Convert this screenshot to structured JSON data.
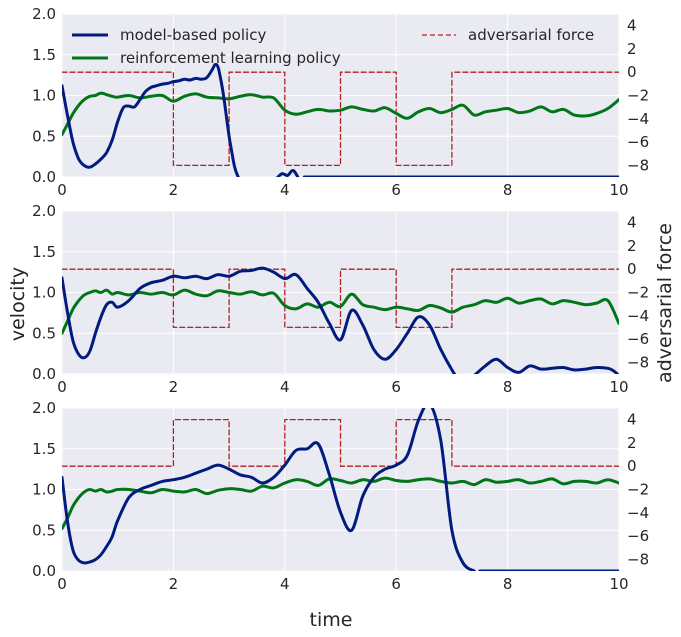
{
  "figure": {
    "xlabel": "time",
    "ylabel": "velocity",
    "y2label": "adversarial force",
    "legend": {
      "model": "model-based policy",
      "rl": "reinforcement learning policy",
      "force": "adversarial force"
    },
    "colors": {
      "background": "#eaeaf2",
      "grid": "#ffffff",
      "model": "#001c7f",
      "rl": "#017517",
      "force": "#b22222"
    }
  },
  "chart_data": [
    {
      "type": "line",
      "panel": 1,
      "xlim": [
        0,
        10
      ],
      "ylim": [
        0,
        2
      ],
      "y2lim": [
        -9,
        5
      ],
      "xticks": [
        "0",
        "2",
        "4",
        "6",
        "8",
        "10"
      ],
      "yticks": [
        "0.0",
        "0.5",
        "1.0",
        "1.5",
        "2.0"
      ],
      "y2ticks": [
        "−8",
        "−6",
        "−4",
        "−2",
        "0",
        "2",
        "4"
      ],
      "legend_position": "top",
      "grid": true,
      "series": [
        {
          "name": "model-based policy",
          "axis": "left",
          "x": [
            0,
            0.1,
            0.2,
            0.3,
            0.4,
            0.5,
            0.6,
            0.7,
            0.8,
            0.9,
            1.0,
            1.1,
            1.2,
            1.3,
            1.4,
            1.5,
            1.6,
            1.7,
            1.8,
            1.9,
            2.0,
            2.1,
            2.2,
            2.3,
            2.4,
            2.5,
            2.6,
            2.7,
            2.75,
            2.8,
            2.85,
            2.9,
            2.95,
            3.0,
            3.05,
            3.1,
            3.15,
            3.2,
            3.25,
            3.3,
            3.35
          ],
          "y": [
            1.12,
            0.75,
            0.42,
            0.22,
            0.14,
            0.12,
            0.16,
            0.22,
            0.3,
            0.45,
            0.68,
            0.85,
            0.87,
            0.86,
            0.95,
            1.05,
            1.1,
            1.12,
            1.14,
            1.15,
            1.17,
            1.18,
            1.2,
            1.19,
            1.21,
            1.2,
            1.22,
            1.32,
            1.38,
            1.35,
            1.2,
            1.0,
            0.75,
            0.5,
            0.3,
            0.12,
            0.02,
            -0.05,
            -0.1,
            -0.12,
            -0.13
          ]
        },
        {
          "name": "",
          "axis": "left",
          "x": [
            3.85,
            3.95,
            4.05,
            4.15,
            4.25
          ],
          "y": [
            -0.02,
            0.04,
            0.02,
            0.08,
            -0.02
          ]
        },
        {
          "name": "",
          "axis": "left",
          "x": [
            4.35,
            10
          ],
          "y": [
            0.0,
            0.0
          ]
        },
        {
          "name": "reinforcement learning policy",
          "axis": "left",
          "x": [
            0,
            0.1,
            0.2,
            0.3,
            0.4,
            0.5,
            0.6,
            0.7,
            0.8,
            0.9,
            1.0,
            1.2,
            1.4,
            1.6,
            1.8,
            2.0,
            2.2,
            2.4,
            2.6,
            2.8,
            3.0,
            3.2,
            3.4,
            3.6,
            3.8,
            4.0,
            4.2,
            4.4,
            4.6,
            4.8,
            5.0,
            5.2,
            5.4,
            5.6,
            5.8,
            6.0,
            6.2,
            6.4,
            6.6,
            6.8,
            7.0,
            7.2,
            7.4,
            7.6,
            7.8,
            8.0,
            8.2,
            8.4,
            8.6,
            8.8,
            9.0,
            9.2,
            9.4,
            9.6,
            9.8,
            10.0
          ],
          "y": [
            0.52,
            0.65,
            0.78,
            0.88,
            0.95,
            0.99,
            1.0,
            1.03,
            1.01,
            0.99,
            0.98,
            1.0,
            0.97,
            0.99,
            1.0,
            0.93,
            0.99,
            1.02,
            0.98,
            0.97,
            0.96,
            0.99,
            1.01,
            0.98,
            0.97,
            0.82,
            0.77,
            0.8,
            0.83,
            0.81,
            0.82,
            0.86,
            0.83,
            0.81,
            0.85,
            0.78,
            0.72,
            0.8,
            0.84,
            0.79,
            0.83,
            0.88,
            0.76,
            0.8,
            0.82,
            0.84,
            0.79,
            0.81,
            0.86,
            0.8,
            0.83,
            0.76,
            0.75,
            0.78,
            0.84,
            0.95
          ]
        },
        {
          "name": "adversarial force",
          "axis": "right",
          "style": "dashed",
          "x": [
            0,
            2,
            2,
            3,
            3,
            4,
            4,
            5,
            5,
            6,
            6,
            7,
            7,
            10
          ],
          "y": [
            0,
            0,
            -8,
            -8,
            0,
            0,
            -8,
            -8,
            0,
            0,
            -8,
            -8,
            0,
            0
          ]
        }
      ]
    },
    {
      "type": "line",
      "panel": 2,
      "xlim": [
        0,
        10
      ],
      "ylim": [
        0,
        2
      ],
      "y2lim": [
        -9,
        5
      ],
      "xticks": [
        "0",
        "2",
        "4",
        "6",
        "8",
        "10"
      ],
      "yticks": [
        "0.0",
        "0.5",
        "1.0",
        "1.5",
        "2.0"
      ],
      "y2ticks": [
        "−8",
        "−6",
        "−4",
        "−2",
        "0",
        "2",
        "4"
      ],
      "grid": true,
      "series": [
        {
          "name": "model-based policy",
          "axis": "left",
          "x": [
            0,
            0.1,
            0.2,
            0.3,
            0.4,
            0.5,
            0.6,
            0.7,
            0.8,
            0.9,
            1.0,
            1.2,
            1.4,
            1.6,
            1.8,
            2.0,
            2.2,
            2.4,
            2.6,
            2.8,
            3.0,
            3.2,
            3.4,
            3.6,
            3.8,
            4.0,
            4.2,
            4.4,
            4.6,
            4.8,
            5.0,
            5.2,
            5.4,
            5.6,
            5.8,
            6.0,
            6.2,
            6.4,
            6.6,
            6.8,
            7.0,
            7.1,
            7.2,
            7.3
          ],
          "y": [
            1.18,
            0.75,
            0.4,
            0.24,
            0.2,
            0.28,
            0.5,
            0.7,
            0.85,
            0.88,
            0.82,
            0.9,
            1.05,
            1.12,
            1.15,
            1.2,
            1.18,
            1.2,
            1.17,
            1.22,
            1.2,
            1.26,
            1.27,
            1.3,
            1.25,
            1.17,
            1.22,
            1.05,
            0.88,
            0.62,
            0.42,
            0.78,
            0.6,
            0.3,
            0.18,
            0.3,
            0.5,
            0.7,
            0.6,
            0.3,
            0.05,
            -0.05,
            -0.1,
            -0.13
          ]
        },
        {
          "name": "",
          "axis": "left",
          "x": [
            7.4,
            7.6,
            7.8,
            8.0,
            8.2,
            8.4,
            8.6,
            8.8,
            9.0,
            9.2,
            9.4,
            9.6,
            9.8,
            9.9,
            10.0
          ],
          "y": [
            -0.02,
            0.1,
            0.18,
            0.08,
            0.02,
            0.1,
            0.06,
            0.07,
            0.08,
            0.05,
            0.06,
            0.08,
            0.07,
            0.04,
            -0.02
          ]
        },
        {
          "name": "reinforcement learning policy",
          "axis": "left",
          "x": [
            0,
            0.1,
            0.2,
            0.3,
            0.4,
            0.5,
            0.6,
            0.7,
            0.8,
            0.9,
            1.0,
            1.2,
            1.4,
            1.6,
            1.8,
            2.0,
            2.2,
            2.4,
            2.6,
            2.8,
            3.0,
            3.2,
            3.4,
            3.6,
            3.8,
            4.0,
            4.2,
            4.4,
            4.6,
            4.8,
            5.0,
            5.2,
            5.4,
            5.6,
            5.8,
            6.0,
            6.2,
            6.4,
            6.6,
            6.8,
            7.0,
            7.2,
            7.4,
            7.6,
            7.8,
            8.0,
            8.2,
            8.4,
            8.6,
            8.8,
            9.0,
            9.2,
            9.4,
            9.6,
            9.8,
            10.0
          ],
          "y": [
            0.5,
            0.65,
            0.8,
            0.9,
            0.97,
            1.0,
            1.02,
            1.0,
            1.03,
            0.98,
            1.0,
            0.97,
            1.0,
            0.98,
            1.0,
            0.97,
            1.03,
            0.98,
            0.96,
            1.02,
            1.0,
            0.98,
            1.01,
            0.97,
            0.99,
            0.84,
            0.8,
            0.86,
            0.82,
            0.88,
            0.83,
            0.98,
            0.85,
            0.82,
            0.79,
            0.82,
            0.8,
            0.78,
            0.84,
            0.81,
            0.76,
            0.82,
            0.85,
            0.9,
            0.88,
            0.93,
            0.87,
            0.9,
            0.92,
            0.86,
            0.9,
            0.88,
            0.85,
            0.87,
            0.9,
            0.62
          ]
        },
        {
          "name": "adversarial force",
          "axis": "right",
          "style": "dashed",
          "x": [
            0,
            2,
            2,
            3,
            3,
            4,
            4,
            5,
            5,
            6,
            6,
            7,
            7,
            10
          ],
          "y": [
            0,
            0,
            -5,
            -5,
            0,
            0,
            -5,
            -5,
            0,
            0,
            -5,
            -5,
            0,
            0
          ]
        }
      ]
    },
    {
      "type": "line",
      "panel": 3,
      "xlim": [
        0,
        10
      ],
      "ylim": [
        0,
        2
      ],
      "y2lim": [
        -9,
        5
      ],
      "xticks": [
        "0",
        "2",
        "4",
        "6",
        "8",
        "10"
      ],
      "yticks": [
        "0.0",
        "0.5",
        "1.0",
        "1.5",
        "2.0"
      ],
      "y2ticks": [
        "−8",
        "−6",
        "−4",
        "−2",
        "0",
        "2",
        "4"
      ],
      "grid": true,
      "series": [
        {
          "name": "model-based policy",
          "axis": "left",
          "x": [
            0,
            0.1,
            0.2,
            0.3,
            0.4,
            0.5,
            0.6,
            0.7,
            0.8,
            0.9,
            1.0,
            1.2,
            1.4,
            1.6,
            1.8,
            2.0,
            2.2,
            2.4,
            2.6,
            2.8,
            3.0,
            3.2,
            3.4,
            3.6,
            3.8,
            4.0,
            4.2,
            4.4,
            4.6,
            4.8,
            5.0,
            5.2,
            5.4,
            5.6,
            5.8,
            6.0,
            6.2,
            6.4,
            6.6,
            6.8,
            7.0,
            7.2,
            7.4
          ],
          "y": [
            1.15,
            0.6,
            0.25,
            0.13,
            0.1,
            0.11,
            0.14,
            0.2,
            0.3,
            0.42,
            0.62,
            0.9,
            1.0,
            1.05,
            1.1,
            1.12,
            1.15,
            1.2,
            1.25,
            1.3,
            1.25,
            1.18,
            1.15,
            1.08,
            1.15,
            1.3,
            1.48,
            1.5,
            1.56,
            1.18,
            0.72,
            0.5,
            0.92,
            1.15,
            1.25,
            1.3,
            1.42,
            1.85,
            2.05,
            1.6,
            0.5,
            0.1,
            0.0
          ]
        },
        {
          "name": "",
          "axis": "left",
          "x": [
            7.5,
            10
          ],
          "y": [
            0.0,
            0.0
          ]
        },
        {
          "name": "reinforcement learning policy",
          "axis": "left",
          "x": [
            0,
            0.1,
            0.2,
            0.3,
            0.4,
            0.5,
            0.6,
            0.7,
            0.8,
            0.9,
            1.0,
            1.2,
            1.4,
            1.6,
            1.8,
            2.0,
            2.2,
            2.4,
            2.6,
            2.8,
            3.0,
            3.2,
            3.4,
            3.6,
            3.8,
            4.0,
            4.2,
            4.4,
            4.6,
            4.8,
            5.0,
            5.2,
            5.4,
            5.6,
            5.8,
            6.0,
            6.2,
            6.4,
            6.6,
            6.8,
            7.0,
            7.2,
            7.4,
            7.6,
            7.8,
            8.0,
            8.2,
            8.4,
            8.6,
            8.8,
            9.0,
            9.2,
            9.4,
            9.6,
            9.8,
            10.0
          ],
          "y": [
            0.52,
            0.65,
            0.8,
            0.9,
            0.97,
            1.0,
            0.98,
            1.0,
            0.97,
            0.98,
            1.0,
            1.0,
            0.98,
            0.96,
            1.0,
            0.98,
            0.97,
            1.0,
            0.95,
            0.99,
            1.01,
            1.0,
            0.98,
            1.04,
            1.02,
            1.08,
            1.12,
            1.1,
            1.05,
            1.13,
            1.11,
            1.08,
            1.12,
            1.1,
            1.14,
            1.11,
            1.1,
            1.12,
            1.13,
            1.1,
            1.08,
            1.1,
            1.06,
            1.12,
            1.09,
            1.1,
            1.12,
            1.08,
            1.1,
            1.13,
            1.07,
            1.1,
            1.1,
            1.08,
            1.12,
            1.08
          ]
        },
        {
          "name": "adversarial force",
          "axis": "right",
          "style": "dashed",
          "x": [
            0,
            2,
            2,
            3,
            3,
            4,
            4,
            5,
            5,
            6,
            6,
            7,
            7,
            10
          ],
          "y": [
            0,
            0,
            4,
            4,
            0,
            0,
            4,
            4,
            0,
            0,
            4,
            4,
            0,
            0
          ]
        }
      ]
    }
  ]
}
